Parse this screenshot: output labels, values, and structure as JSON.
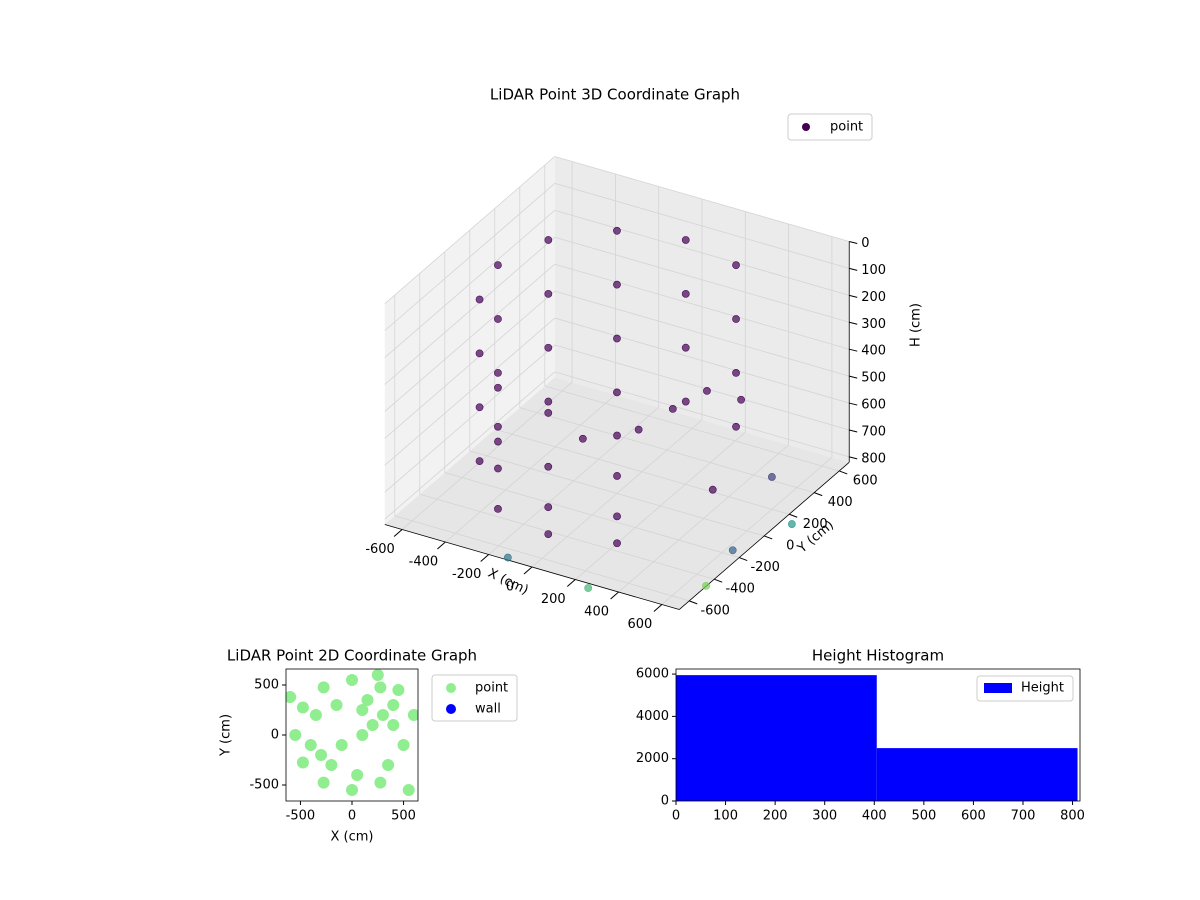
{
  "chart_data": [
    {
      "type": "scatter3d",
      "title": "LiDAR Point 3D Coordinate Graph",
      "xlabel": "X (cm)",
      "ylabel": "Y (cm)",
      "zlabel": "H (cm)",
      "xlim": [
        -680,
        680
      ],
      "ylim": [
        -680,
        680
      ],
      "zlim": [
        0,
        820
      ],
      "z_inverted": true,
      "xticks": [
        -600,
        -400,
        -200,
        0,
        200,
        400,
        600
      ],
      "yticks": [
        -600,
        -400,
        -200,
        0,
        200,
        400,
        600
      ],
      "zticks": [
        0,
        100,
        200,
        300,
        400,
        500,
        600,
        700,
        800
      ],
      "grid": true,
      "legend": "upper right",
      "colormap": "viridis",
      "series": [
        {
          "name": "point",
          "color": "#440154",
          "x": [
            275,
            275,
            275,
            275,
            0,
            0,
            0,
            0,
            -275,
            -275,
            -275,
            -275,
            -476,
            -476,
            -476,
            -476,
            -550,
            -550,
            -550,
            -550,
            -476,
            -476,
            -476,
            -476,
            -275,
            -275,
            -275,
            -275,
            0,
            0,
            0,
            0,
            275,
            275,
            275,
            275,
            200,
            300,
            400,
            100,
            -100,
            500,
            600,
            700,
            300,
            -100,
            650,
            750
          ],
          "y": [
            476,
            476,
            476,
            476,
            550,
            550,
            550,
            550,
            476,
            476,
            476,
            476,
            275,
            275,
            275,
            275,
            0,
            0,
            0,
            0,
            -275,
            -275,
            -275,
            -275,
            -476,
            -476,
            -476,
            -476,
            -550,
            -550,
            -550,
            -550,
            -476,
            -476,
            -476,
            -476,
            100,
            200,
            300,
            0,
            -100,
            -100,
            200,
            -500,
            -750,
            -700,
            -200,
            100
          ],
          "z": [
            100,
            300,
            500,
            700,
            100,
            300,
            500,
            700,
            100,
            300,
            500,
            700,
            100,
            300,
            500,
            700,
            100,
            300,
            500,
            700,
            100,
            300,
            500,
            700,
            300,
            500,
            600,
            750,
            300,
            500,
            650,
            750,
            350,
            500,
            650,
            750,
            500,
            450,
            500,
            560,
            600,
            650,
            700,
            800,
            800,
            800,
            800,
            800
          ]
        }
      ]
    },
    {
      "type": "scatter",
      "title": "LiDAR Point 2D Coordinate Graph",
      "xlabel": "X (cm)",
      "ylabel": "Y (cm)",
      "xlim": [
        -640,
        640
      ],
      "ylim": [
        -660,
        660
      ],
      "xticks": [
        -500,
        0,
        500
      ],
      "yticks": [
        -500,
        0,
        500
      ],
      "legend": "outside right",
      "series": [
        {
          "name": "point",
          "color": "#90ee90",
          "x": [
            275,
            0,
            -275,
            -476,
            -550,
            -476,
            -275,
            0,
            275,
            200,
            300,
            400,
            100,
            -100,
            500,
            600,
            150,
            -150,
            -350,
            -400,
            -200,
            50,
            350,
            450,
            -600,
            550,
            250,
            -300,
            100,
            400
          ],
          "y": [
            476,
            550,
            476,
            275,
            0,
            -275,
            -476,
            -550,
            -476,
            100,
            200,
            300,
            0,
            -100,
            -100,
            200,
            350,
            300,
            200,
            -100,
            -300,
            -400,
            -300,
            450,
            380,
            -550,
            600,
            -200,
            250,
            100
          ]
        },
        {
          "name": "wall",
          "color": "#0000ff",
          "x": [],
          "y": []
        }
      ]
    },
    {
      "type": "histogram",
      "title": "Height Histogram",
      "bins": [
        0,
        405,
        810
      ],
      "values": [
        5950,
        2500
      ],
      "name": "Height",
      "color": "#0000ff",
      "xlim": [
        0,
        815
      ],
      "ylim": [
        0,
        6240
      ],
      "xticks": [
        0,
        100,
        200,
        300,
        400,
        500,
        600,
        700,
        800
      ],
      "yticks": [
        0,
        2000,
        4000,
        6000
      ],
      "legend": "upper right"
    }
  ]
}
